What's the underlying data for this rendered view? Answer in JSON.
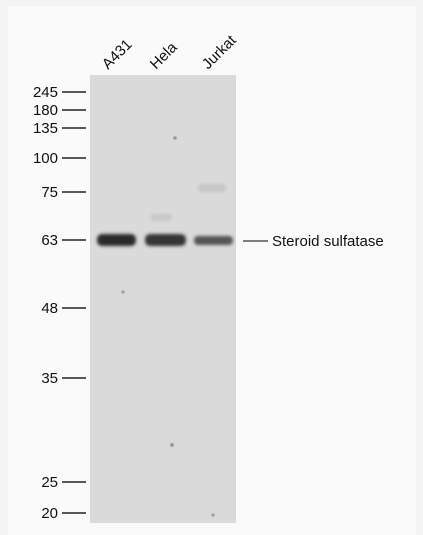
{
  "lanes": [
    "A431",
    "Hela",
    "Jurkat"
  ],
  "markers": [
    "245",
    "180",
    "135",
    "100",
    "75",
    "63",
    "48",
    "35",
    "25",
    "20"
  ],
  "band_label": "Steroid sulfatase"
}
